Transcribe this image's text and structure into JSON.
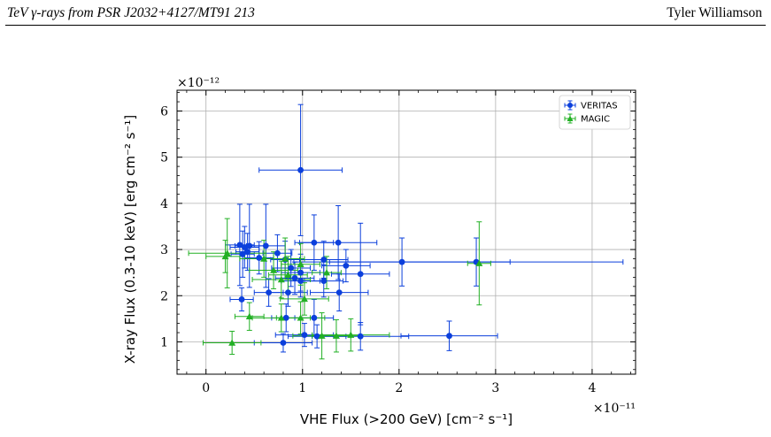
{
  "header": {
    "left_title": "TeV γ-rays from PSR J2032+4127/MT91 213",
    "author": "Tyler Williamson"
  },
  "chart_data": {
    "type": "scatter",
    "xlabel": "VHE Flux (>200 GeV) [cm⁻² s⁻¹]",
    "ylabel": "X-ray Flux (0.3-10 keV) [erg cm⁻² s⁻¹]",
    "x_multiplier": "×10⁻¹¹",
    "y_multiplier": "×10⁻¹²",
    "xlim": [
      -0.3,
      4.45
    ],
    "ylim": [
      0.3,
      6.45
    ],
    "xticks": [
      0,
      1,
      2,
      3,
      4
    ],
    "yticks": [
      1,
      2,
      3,
      4,
      5,
      6
    ],
    "grid": true,
    "legend_position": "top-right",
    "series": [
      {
        "name": "VERITAS",
        "color": "#0b3fdc",
        "marker": "circle",
        "points": [
          {
            "x": 0.98,
            "y": 4.72,
            "xerr": 0.43,
            "yerr": 1.42
          },
          {
            "x": 0.35,
            "y": 3.1,
            "xerr": 0.15,
            "yerr": 0.88
          },
          {
            "x": 0.4,
            "y": 3.05,
            "xerr": 0.15,
            "yerr": 0.45
          },
          {
            "x": 0.45,
            "y": 3.08,
            "xerr": 0.15,
            "yerr": 0.9
          },
          {
            "x": 0.62,
            "y": 3.08,
            "xerr": 0.2,
            "yerr": 0.9
          },
          {
            "x": 1.12,
            "y": 3.15,
            "xerr": 0.2,
            "yerr": 0.6
          },
          {
            "x": 1.37,
            "y": 3.15,
            "xerr": 0.4,
            "yerr": 0.8
          },
          {
            "x": 0.38,
            "y": 2.9,
            "xerr": 0.12,
            "yerr": 0.5
          },
          {
            "x": 0.43,
            "y": 2.95,
            "xerr": 0.12,
            "yerr": 0.4
          },
          {
            "x": 0.74,
            "y": 2.92,
            "xerr": 0.15,
            "yerr": 0.4
          },
          {
            "x": 0.55,
            "y": 2.82,
            "xerr": 0.15,
            "yerr": 0.35
          },
          {
            "x": 0.82,
            "y": 2.78,
            "xerr": 0.15,
            "yerr": 0.4
          },
          {
            "x": 1.22,
            "y": 2.78,
            "xerr": 0.25,
            "yerr": 0.4
          },
          {
            "x": 1.45,
            "y": 2.65,
            "xerr": 0.25,
            "yerr": 0.35
          },
          {
            "x": 2.03,
            "y": 2.73,
            "xerr": 1.12,
            "yerr": 0.52
          },
          {
            "x": 2.8,
            "y": 2.73,
            "xerr": 1.52,
            "yerr": 0.52
          },
          {
            "x": 0.88,
            "y": 2.6,
            "xerr": 0.2,
            "yerr": 0.4
          },
          {
            "x": 0.98,
            "y": 2.5,
            "xerr": 0.2,
            "yerr": 0.4
          },
          {
            "x": 1.6,
            "y": 2.47,
            "xerr": 0.3,
            "yerr": 1.1
          },
          {
            "x": 0.92,
            "y": 2.38,
            "xerr": 0.2,
            "yerr": 0.35
          },
          {
            "x": 0.98,
            "y": 2.32,
            "xerr": 0.2,
            "yerr": 0.35
          },
          {
            "x": 1.22,
            "y": 2.32,
            "xerr": 0.2,
            "yerr": 0.35
          },
          {
            "x": 0.65,
            "y": 2.07,
            "xerr": 0.15,
            "yerr": 0.3
          },
          {
            "x": 0.85,
            "y": 2.07,
            "xerr": 0.2,
            "yerr": 0.3
          },
          {
            "x": 1.38,
            "y": 2.07,
            "xerr": 0.3,
            "yerr": 0.4
          },
          {
            "x": 0.37,
            "y": 1.92,
            "xerr": 0.12,
            "yerr": 0.25
          },
          {
            "x": 0.83,
            "y": 1.52,
            "xerr": 0.15,
            "yerr": 0.3
          },
          {
            "x": 1.12,
            "y": 1.52,
            "xerr": 0.2,
            "yerr": 0.4
          },
          {
            "x": 2.52,
            "y": 1.13,
            "xerr": 0.5,
            "yerr": 0.32
          },
          {
            "x": 1.02,
            "y": 1.15,
            "xerr": 0.3,
            "yerr": 0.25
          },
          {
            "x": 1.15,
            "y": 1.12,
            "xerr": 0.3,
            "yerr": 0.25
          },
          {
            "x": 1.6,
            "y": 1.12,
            "xerr": 0.5,
            "yerr": 0.3
          },
          {
            "x": 0.8,
            "y": 0.98,
            "xerr": 0.3,
            "yerr": 0.2
          }
        ]
      },
      {
        "name": "MAGIC",
        "color": "#22b024",
        "marker": "triangle",
        "points": [
          {
            "x": 0.22,
            "y": 2.92,
            "xerr": 0.4,
            "yerr": 0.75
          },
          {
            "x": 0.2,
            "y": 2.85,
            "xerr": 0.2,
            "yerr": 0.35
          },
          {
            "x": 0.6,
            "y": 2.8,
            "xerr": 0.25,
            "yerr": 0.4
          },
          {
            "x": 0.82,
            "y": 2.8,
            "xerr": 0.2,
            "yerr": 0.45
          },
          {
            "x": 0.98,
            "y": 2.68,
            "xerr": 0.2,
            "yerr": 0.45
          },
          {
            "x": 0.7,
            "y": 2.55,
            "xerr": 0.25,
            "yerr": 0.4
          },
          {
            "x": 0.85,
            "y": 2.45,
            "xerr": 0.2,
            "yerr": 0.4
          },
          {
            "x": 0.78,
            "y": 2.35,
            "xerr": 0.3,
            "yerr": 0.4
          },
          {
            "x": 1.25,
            "y": 2.5,
            "xerr": 0.15,
            "yerr": 0.35
          },
          {
            "x": 1.02,
            "y": 1.93,
            "xerr": 0.25,
            "yerr": 0.35
          },
          {
            "x": 0.45,
            "y": 1.55,
            "xerr": 0.15,
            "yerr": 0.3
          },
          {
            "x": 0.98,
            "y": 1.52,
            "xerr": 0.25,
            "yerr": 0.35
          },
          {
            "x": 0.78,
            "y": 1.52,
            "xerr": 0.3,
            "yerr": 0.3
          },
          {
            "x": 1.2,
            "y": 1.13,
            "xerr": 0.3,
            "yerr": 0.5
          },
          {
            "x": 1.35,
            "y": 1.13,
            "xerr": 0.25,
            "yerr": 0.35
          },
          {
            "x": 1.5,
            "y": 1.15,
            "xerr": 0.4,
            "yerr": 0.35
          },
          {
            "x": 0.27,
            "y": 0.98,
            "xerr": 0.3,
            "yerr": 0.25
          },
          {
            "x": 2.83,
            "y": 2.7,
            "xerr": 0.12,
            "yerr": 0.9
          }
        ]
      }
    ]
  }
}
